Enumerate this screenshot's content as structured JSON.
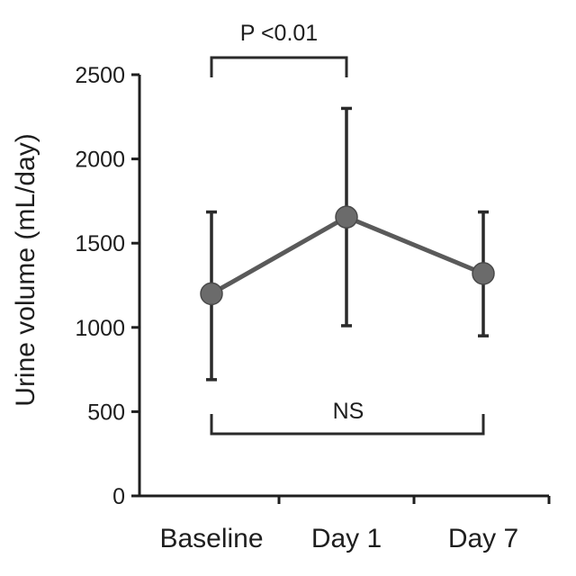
{
  "chart_data": {
    "type": "line",
    "categories": [
      "Baseline",
      "Day 1",
      "Day 7"
    ],
    "series": [
      {
        "values": [
          1200,
          1655,
          1320
        ],
        "error_low": [
          690,
          1010,
          950
        ],
        "error_high": [
          1685,
          2300,
          1685
        ]
      }
    ],
    "ylabel": "Urine volume (mL/day)",
    "xlabel": "",
    "ylim": [
      0,
      2500
    ],
    "yticks": [
      0,
      500,
      1000,
      1500,
      2000,
      2500
    ],
    "grid": false,
    "annotations": [
      {
        "text": "P <0.01",
        "from": "Baseline",
        "to": "Day 1",
        "placement": "top"
      },
      {
        "text": "NS",
        "from": "Baseline",
        "to": "Day 7",
        "placement": "bottom"
      }
    ],
    "colors": {
      "line": "#5a5a5a",
      "marker": "#6b6b6b",
      "error_bar": "#2a2a2a",
      "axis": "#1e1e1e"
    }
  }
}
